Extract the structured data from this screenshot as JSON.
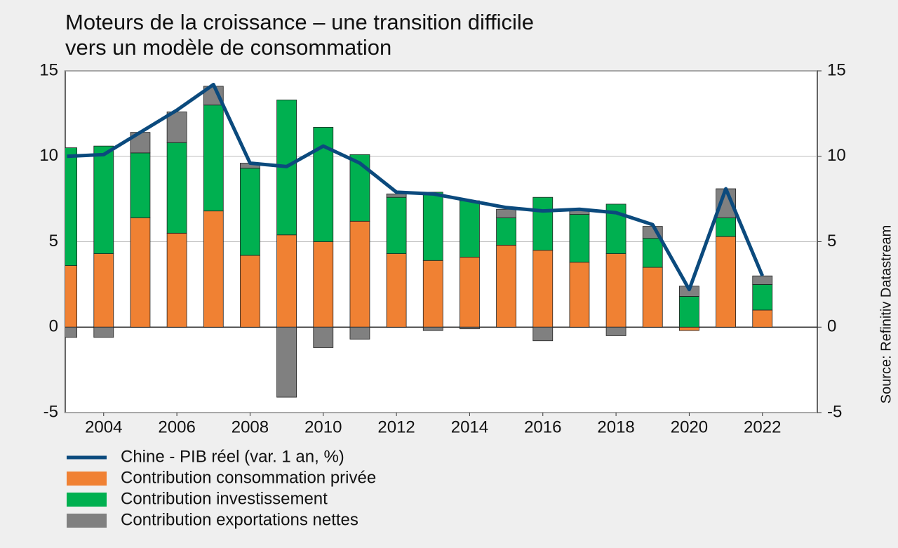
{
  "chart_data": {
    "type": "bar",
    "title": [
      "Moteurs de la croissance – une transition difficile",
      "vers un modèle de consommation"
    ],
    "source": "Source: Refinitiv Datastream",
    "stacked": true,
    "x": [
      2003,
      2004,
      2005,
      2006,
      2007,
      2008,
      2009,
      2010,
      2011,
      2012,
      2013,
      2014,
      2015,
      2016,
      2017,
      2018,
      2019,
      2020,
      2021,
      2022
    ],
    "xlim": [
      2002.95,
      2023.5
    ],
    "xticks": [
      2004,
      2006,
      2008,
      2010,
      2012,
      2014,
      2016,
      2018,
      2020,
      2022
    ],
    "ylim": [
      -5,
      15
    ],
    "yticks": [
      -5,
      0,
      5,
      10,
      15
    ],
    "y2lim": [
      -5,
      15
    ],
    "y2ticks": [
      -5,
      0,
      5,
      10,
      15
    ],
    "grid": true,
    "series": [
      {
        "name": "Chine - PIB réel (var. 1 an, %)",
        "type": "line",
        "axis": "y2",
        "color": "#0b4a7d",
        "values": [
          10.0,
          10.1,
          11.4,
          12.7,
          14.2,
          9.6,
          9.4,
          10.6,
          9.6,
          7.9,
          7.8,
          7.4,
          7.0,
          6.8,
          6.9,
          6.7,
          6.0,
          2.2,
          8.1,
          3.0
        ]
      },
      {
        "name": "Contribution consommation privée",
        "type": "bar",
        "color": "#f08133",
        "values": [
          3.6,
          4.3,
          6.4,
          5.5,
          6.8,
          4.2,
          5.4,
          5.0,
          6.2,
          4.3,
          3.9,
          4.1,
          4.8,
          4.5,
          3.8,
          4.3,
          3.5,
          -0.2,
          5.3,
          1.0
        ]
      },
      {
        "name": "Contribution investissement",
        "type": "bar",
        "color": "#00b050",
        "values": [
          6.9,
          6.3,
          3.8,
          5.3,
          6.2,
          5.1,
          7.9,
          6.7,
          3.9,
          3.3,
          4.0,
          3.3,
          1.6,
          3.1,
          2.8,
          2.9,
          1.7,
          1.8,
          1.1,
          1.5
        ]
      },
      {
        "name": "Contribution exportations nettes",
        "type": "bar",
        "color": "#808080",
        "values": [
          -0.6,
          -0.6,
          1.2,
          1.8,
          1.1,
          0.3,
          -4.1,
          -1.2,
          -0.7,
          0.2,
          -0.2,
          -0.1,
          0.5,
          -0.8,
          0.3,
          -0.5,
          0.7,
          0.6,
          1.7,
          0.5
        ]
      }
    ]
  }
}
